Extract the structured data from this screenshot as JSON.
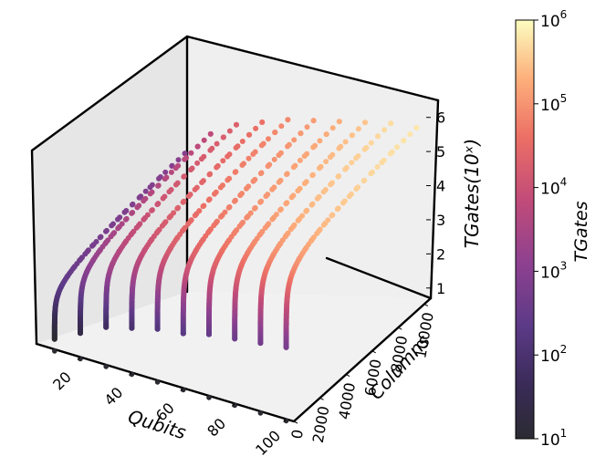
{
  "chart_data": [
    {
      "type": "scatter",
      "subtype": "scatter3d",
      "title": "",
      "xlabel": "Qubits",
      "ylabel": "Columns",
      "zlabel": "TGates(10ˣ)",
      "x_ticks": [
        "20",
        "40",
        "60",
        "80",
        "100"
      ],
      "y_ticks": [
        "0",
        "2000",
        "4000",
        "6000",
        "8000",
        "10000"
      ],
      "z_ticks": [
        "1",
        "2",
        "3",
        "4",
        "5",
        "6"
      ],
      "xlim": [
        3,
        103
      ],
      "ylim": [
        0,
        10500
      ],
      "zlim": [
        0.7,
        6.5
      ],
      "qubits": [
        10,
        20,
        30,
        40,
        50,
        60,
        70,
        80,
        90,
        100
      ],
      "columns_range": [
        1,
        10000
      ],
      "series": [
        {
          "qubits": 10,
          "log_tgates_min": 1.0,
          "log_tgates_max": 3.0
        },
        {
          "qubits": 20,
          "log_tgates_min": 1.4,
          "log_tgates_max": 3.8
        },
        {
          "qubits": 30,
          "log_tgates_min": 1.8,
          "log_tgates_max": 4.3
        },
        {
          "qubits": 40,
          "log_tgates_min": 2.0,
          "log_tgates_max": 4.6
        },
        {
          "qubits": 50,
          "log_tgates_min": 2.2,
          "log_tgates_max": 4.9
        },
        {
          "qubits": 60,
          "log_tgates_min": 2.3,
          "log_tgates_max": 5.1
        },
        {
          "qubits": 70,
          "log_tgates_min": 2.5,
          "log_tgates_max": 5.3
        },
        {
          "qubits": 80,
          "log_tgates_min": 2.6,
          "log_tgates_max": 5.5
        },
        {
          "qubits": 90,
          "log_tgates_min": 2.7,
          "log_tgates_max": 5.7
        },
        {
          "qubits": 100,
          "log_tgates_min": 2.8,
          "log_tgates_max": 5.8
        }
      ],
      "grid": false,
      "colormap": "magma",
      "colors": {
        "pane": "#ebebeb",
        "dark": "#2b2b32",
        "bright": "#fcfdbf"
      }
    },
    {
      "type": "heatmap",
      "subtype": "colorbar",
      "label": "TGates",
      "scale": "log",
      "range": [
        10,
        1000000
      ],
      "ticks": [
        {
          "base": "10",
          "exp": "6"
        },
        {
          "base": "10",
          "exp": "5"
        },
        {
          "base": "10",
          "exp": "4"
        },
        {
          "base": "10",
          "exp": "3"
        },
        {
          "base": "10",
          "exp": "2"
        },
        {
          "base": "10",
          "exp": "1"
        }
      ]
    }
  ]
}
